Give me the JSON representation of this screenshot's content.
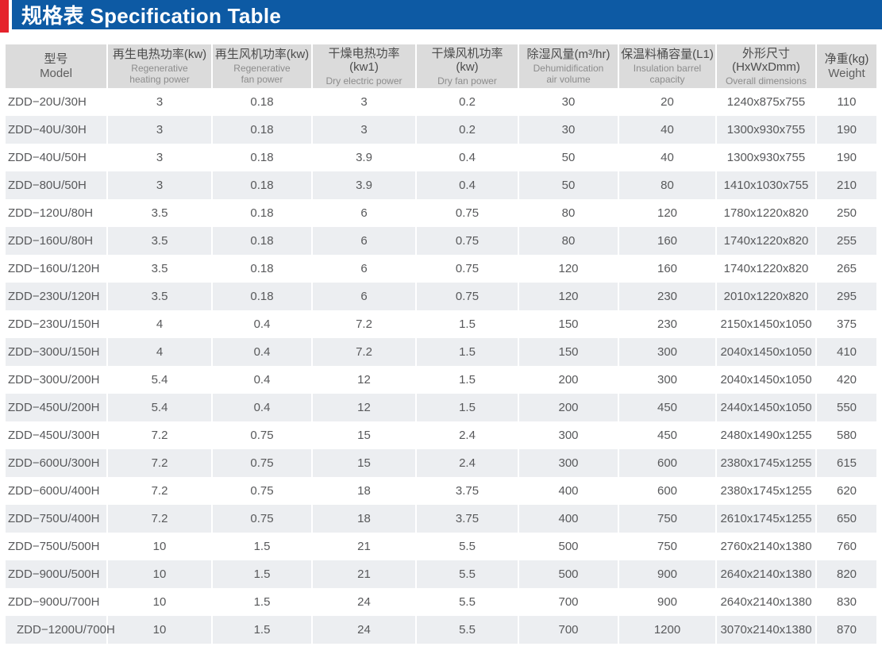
{
  "header": {
    "title": "规格表 Specification Table",
    "accent_color": "#e5232c",
    "bar_color": "#0d5aa4"
  },
  "table": {
    "columns": [
      {
        "id": "model",
        "zh": "型号",
        "en": "Model",
        "en_dark": true
      },
      {
        "id": "regenerative-heating-power",
        "zh": "再生电热功率(kw)",
        "en": "Regenerative\nheating power"
      },
      {
        "id": "regenerative-fan-power",
        "zh": "再生风机功率(kw)",
        "en": "Regenerative\nfan power"
      },
      {
        "id": "dry-electric-power",
        "zh": "干燥电热功率\n(kw1)",
        "en": "Dry electric power"
      },
      {
        "id": "dry-fan-power",
        "zh": "干燥风机功率\n(kw)",
        "en": "Dry fan power"
      },
      {
        "id": "dehumidification-air-volume",
        "zh": "除湿风量(m³/hr)",
        "en": "Dehumidification\nair volume"
      },
      {
        "id": "insulation-barrel-capacity",
        "zh": "保温料桶容量(L1)",
        "en": "Insulation barrel\ncapacity"
      },
      {
        "id": "overall-dimensions",
        "zh": "外形尺寸\n(HxWxDmm)",
        "en": "Overall dimensions"
      },
      {
        "id": "weight",
        "zh": "净重(kg)",
        "en": "Weight",
        "en_dark": true
      }
    ],
    "rows": [
      [
        "ZDD−20U/30H",
        "3",
        "0.18",
        "3",
        "0.2",
        "30",
        "20",
        "1240x875x755",
        "110"
      ],
      [
        "ZDD−40U/30H",
        "3",
        "0.18",
        "3",
        "0.2",
        "30",
        "40",
        "1300x930x755",
        "190"
      ],
      [
        "ZDD−40U/50H",
        "3",
        "0.18",
        "3.9",
        "0.4",
        "50",
        "40",
        "1300x930x755",
        "190"
      ],
      [
        "ZDD−80U/50H",
        "3",
        "0.18",
        "3.9",
        "0.4",
        "50",
        "80",
        "1410x1030x755",
        "210"
      ],
      [
        "ZDD−120U/80H",
        "3.5",
        "0.18",
        "6",
        "0.75",
        "80",
        "120",
        "1780x1220x820",
        "250"
      ],
      [
        "ZDD−160U/80H",
        "3.5",
        "0.18",
        "6",
        "0.75",
        "80",
        "160",
        "1740x1220x820",
        "255"
      ],
      [
        "ZDD−160U/120H",
        "3.5",
        "0.18",
        "6",
        "0.75",
        "120",
        "160",
        "1740x1220x820",
        "265"
      ],
      [
        "ZDD−230U/120H",
        "3.5",
        "0.18",
        "6",
        "0.75",
        "120",
        "230",
        "2010x1220x820",
        "295"
      ],
      [
        "ZDD−230U/150H",
        "4",
        "0.4",
        "7.2",
        "1.5",
        "150",
        "230",
        "2150x1450x1050",
        "375"
      ],
      [
        "ZDD−300U/150H",
        "4",
        "0.4",
        "7.2",
        "1.5",
        "150",
        "300",
        "2040x1450x1050",
        "410"
      ],
      [
        "ZDD−300U/200H",
        "5.4",
        "0.4",
        "12",
        "1.5",
        "200",
        "300",
        "2040x1450x1050",
        "420"
      ],
      [
        "ZDD−450U/200H",
        "5.4",
        "0.4",
        "12",
        "1.5",
        "200",
        "450",
        "2440x1450x1050",
        "550"
      ],
      [
        "ZDD−450U/300H",
        "7.2",
        "0.75",
        "15",
        "2.4",
        "300",
        "450",
        "2480x1490x1255",
        "580"
      ],
      [
        "ZDD−600U/300H",
        "7.2",
        "0.75",
        "15",
        "2.4",
        "300",
        "600",
        "2380x1745x1255",
        "615"
      ],
      [
        "ZDD−600U/400H",
        "7.2",
        "0.75",
        "18",
        "3.75",
        "400",
        "600",
        "2380x1745x1255",
        "620"
      ],
      [
        "ZDD−750U/400H",
        "7.2",
        "0.75",
        "18",
        "3.75",
        "400",
        "750",
        "2610x1745x1255",
        "650"
      ],
      [
        "ZDD−750U/500H",
        "10",
        "1.5",
        "21",
        "5.5",
        "500",
        "750",
        "2760x2140x1380",
        "760"
      ],
      [
        "ZDD−900U/500H",
        "10",
        "1.5",
        "21",
        "5.5",
        "500",
        "900",
        "2640x2140x1380",
        "820"
      ],
      [
        "ZDD−900U/700H",
        "10",
        "1.5",
        "24",
        "5.5",
        "700",
        "900",
        "2640x2140x1380",
        "830"
      ],
      [
        "ZDD−1200U/700H",
        "10",
        "1.5",
        "24",
        "5.5",
        "700",
        "1200",
        "3070x2140x1380",
        "870"
      ]
    ]
  }
}
